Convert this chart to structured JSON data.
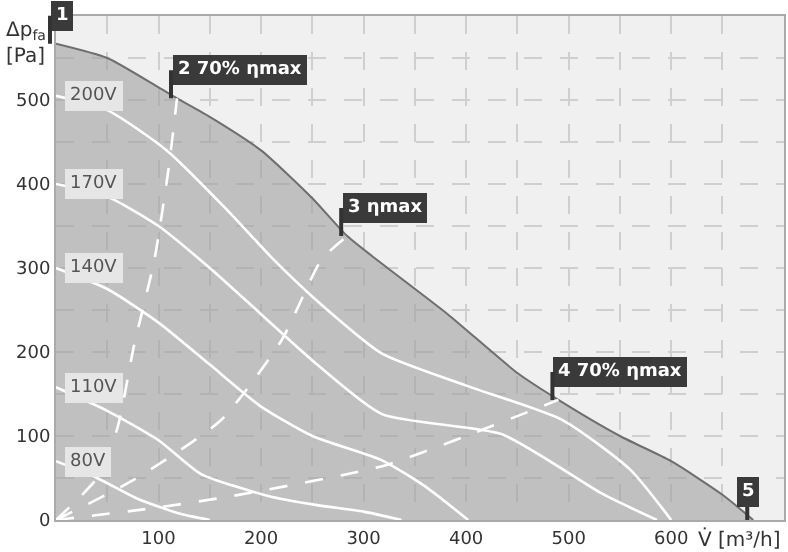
{
  "chart_data": {
    "type": "line",
    "xlabel": "V̇ [m³/h]",
    "ylabel": "Δp$_{fa}$ [Pa]",
    "xlim": [
      0,
      710
    ],
    "ylim": [
      0,
      600
    ],
    "xticks": [
      100,
      200,
      300,
      400,
      500,
      600
    ],
    "yticks": [
      0,
      100,
      200,
      300,
      400,
      500
    ],
    "grid": true,
    "legend": false,
    "marker": "none",
    "series": [
      {
        "type": "area",
        "color": "#6e6e6e",
        "x": [
          0,
          50,
          100,
          118,
          150,
          200,
          250,
          284,
          318,
          382,
          450,
          490,
          550,
          600,
          650,
          680
        ],
        "values": [
          567,
          550,
          515,
          502,
          480,
          440,
          383,
          338,
          305,
          245,
          175,
          143,
          100,
          70,
          30,
          0
        ]
      },
      {
        "name": "200V",
        "color": "#ffffff",
        "x": [
          0,
          50,
          108,
          167,
          213,
          260,
          318,
          400,
          494,
          560,
          600
        ],
        "values": [
          505,
          488,
          440,
          369,
          309,
          255,
          198,
          160,
          119,
          60,
          0
        ]
      },
      {
        "name": "170V",
        "color": "#ffffff",
        "x": [
          0,
          50,
          100,
          150,
          200,
          250,
          318,
          435,
          533,
          586
        ],
        "values": [
          400,
          385,
          350,
          300,
          245,
          190,
          126,
          102,
          31,
          0
        ]
      },
      {
        "name": "140V",
        "color": "#ffffff",
        "x": [
          0,
          50,
          100,
          150,
          200,
          250,
          318,
          360,
          402
        ],
        "values": [
          300,
          275,
          235,
          185,
          135,
          100,
          71,
          40,
          0
        ]
      },
      {
        "name": "110V",
        "color": "#ffffff",
        "x": [
          0,
          50,
          100,
          141,
          206,
          253,
          300,
          337
        ],
        "values": [
          158,
          130,
          95,
          55,
          29,
          18,
          10,
          0
        ]
      },
      {
        "name": "80V",
        "color": "#ffffff",
        "x": [
          0,
          40,
          80,
          122,
          150
        ],
        "values": [
          70,
          50,
          25,
          7,
          0
        ]
      },
      {
        "color": "#ffffff",
        "line_style": "dashed",
        "x": [
          0,
          40,
          60,
          76,
          96,
          110,
          118
        ],
        "values": [
          0,
          50,
          110,
          207,
          310,
          420,
          502
        ]
      },
      {
        "color": "#ffffff",
        "line_style": "dashed",
        "x": [
          0,
          76,
          161,
          220,
          259,
          284
        ],
        "values": [
          0,
          48,
          119,
          214,
          310,
          338
        ]
      },
      {
        "color": "#ffffff",
        "line_style": "dashed",
        "x": [
          0,
          100,
          174,
          318,
          400,
          490
        ],
        "values": [
          0,
          15,
          29,
          64,
          100,
          143
        ]
      }
    ],
    "annotations": [
      {
        "text": "1",
        "x": 0,
        "y": 567
      },
      {
        "text": "2 70% ηmax",
        "x": 118,
        "y": 502
      },
      {
        "text": "3 ηmax",
        "x": 284,
        "y": 338
      },
      {
        "text": "4 70% ηmax",
        "x": 490,
        "y": 143
      },
      {
        "text": "5",
        "x": 680,
        "y": 0
      }
    ]
  }
}
